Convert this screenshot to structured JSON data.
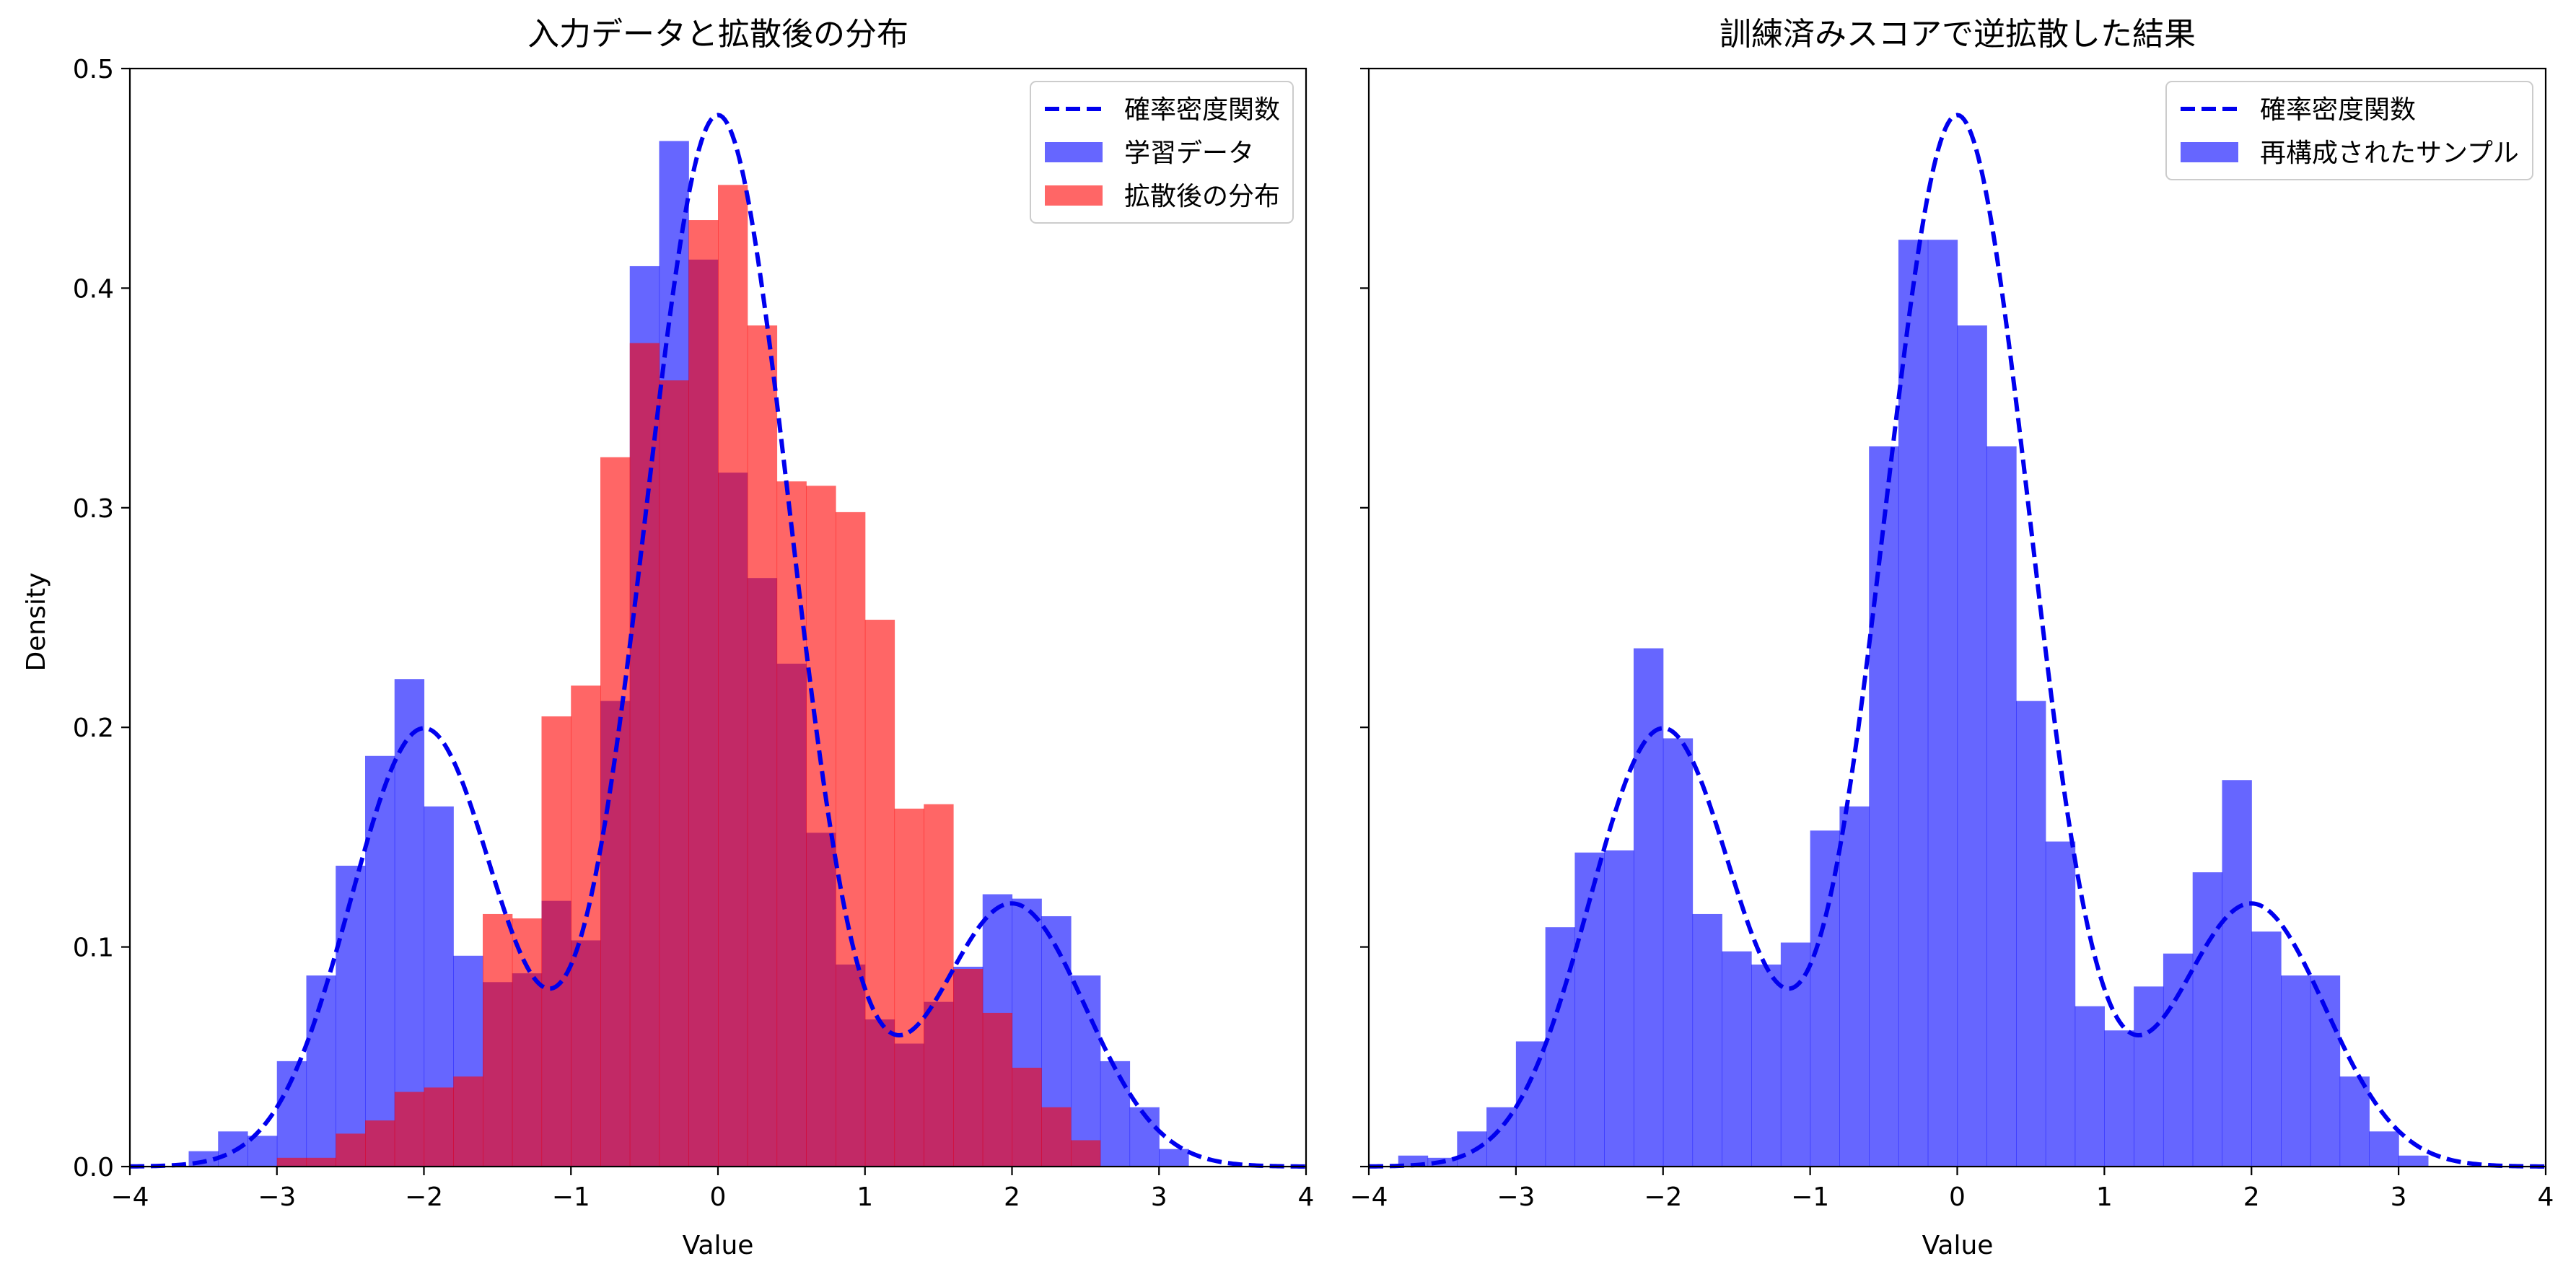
{
  "chart_data": [
    {
      "type": "bar",
      "title": "入力データと拡散後の分布",
      "xlabel": "Value",
      "ylabel": "Density",
      "xlim": [
        -4,
        4
      ],
      "ylim": [
        0,
        0.5
      ],
      "xticks": [
        "−4",
        "−3",
        "−2",
        "−1",
        "0",
        "1",
        "2",
        "3",
        "4"
      ],
      "xtick_values": [
        -4,
        -3,
        -2,
        -1,
        0,
        1,
        2,
        3,
        4
      ],
      "yticks": [
        "0.0",
        "0.1",
        "0.2",
        "0.3",
        "0.4",
        "0.5"
      ],
      "ytick_values": [
        0,
        0.1,
        0.2,
        0.3,
        0.4,
        0.5
      ],
      "legend_position": "top-right",
      "pdf": {
        "name": "確率密度関数",
        "color": "#0000ee",
        "style": "dashed",
        "mixture": [
          {
            "weight": 0.25,
            "mean": -2,
            "std": 0.5
          },
          {
            "weight": 0.6,
            "mean": 0,
            "std": 0.5
          },
          {
            "weight": 0.15,
            "mean": 2,
            "std": 0.5
          }
        ]
      },
      "series": [
        {
          "name": "学習データ",
          "color": "#0000ff",
          "opacity": 0.6,
          "bin_start": -3.6,
          "bin_width": 0.2,
          "values": [
            0.007,
            0.016,
            0.014,
            0.048,
            0.087,
            0.137,
            0.187,
            0.222,
            0.164,
            0.096,
            0.084,
            0.088,
            0.121,
            0.103,
            0.212,
            0.41,
            0.467,
            0.413,
            0.316,
            0.268,
            0.229,
            0.152,
            0.092,
            0.067,
            0.056,
            0.075,
            0.091,
            0.124,
            0.122,
            0.114,
            0.087,
            0.048,
            0.027,
            0.008
          ]
        },
        {
          "name": "拡散後の分布",
          "color": "#ff0000",
          "opacity": 0.6,
          "bin_start": -3.0,
          "bin_width": 0.2,
          "values": [
            0.004,
            0.004,
            0.015,
            0.021,
            0.034,
            0.036,
            0.041,
            0.115,
            0.113,
            0.205,
            0.219,
            0.323,
            0.375,
            0.358,
            0.431,
            0.447,
            0.383,
            0.312,
            0.31,
            0.298,
            0.249,
            0.163,
            0.165,
            0.09,
            0.07,
            0.045,
            0.027,
            0.012
          ]
        }
      ]
    },
    {
      "type": "bar",
      "title": "訓練済みスコアで逆拡散した結果",
      "xlabel": "Value",
      "ylabel": "",
      "xlim": [
        -4,
        4
      ],
      "ylim": [
        0,
        0.5
      ],
      "xticks": [
        "−4",
        "−3",
        "−2",
        "−1",
        "0",
        "1",
        "2",
        "3",
        "4"
      ],
      "xtick_values": [
        -4,
        -3,
        -2,
        -1,
        0,
        1,
        2,
        3,
        4
      ],
      "yticks": [
        "",
        "",
        "",
        "",
        "",
        ""
      ],
      "ytick_values": [
        0,
        0.1,
        0.2,
        0.3,
        0.4,
        0.5
      ],
      "legend_position": "top-right",
      "pdf": {
        "name": "確率密度関数",
        "color": "#0000ee",
        "style": "dashed",
        "mixture": [
          {
            "weight": 0.25,
            "mean": -2,
            "std": 0.5
          },
          {
            "weight": 0.6,
            "mean": 0,
            "std": 0.5
          },
          {
            "weight": 0.15,
            "mean": 2,
            "std": 0.5
          }
        ]
      },
      "series": [
        {
          "name": "再構成されたサンプル",
          "color": "#0000ff",
          "opacity": 0.6,
          "bin_start": -3.8,
          "bin_width": 0.2,
          "values": [
            0.005,
            0.004,
            0.016,
            0.027,
            0.057,
            0.109,
            0.143,
            0.144,
            0.236,
            0.195,
            0.115,
            0.098,
            0.092,
            0.102,
            0.153,
            0.164,
            0.328,
            0.422,
            0.422,
            0.383,
            0.328,
            0.212,
            0.148,
            0.073,
            0.062,
            0.082,
            0.097,
            0.134,
            0.176,
            0.107,
            0.087,
            0.087,
            0.041,
            0.016,
            0.005
          ]
        }
      ]
    }
  ]
}
